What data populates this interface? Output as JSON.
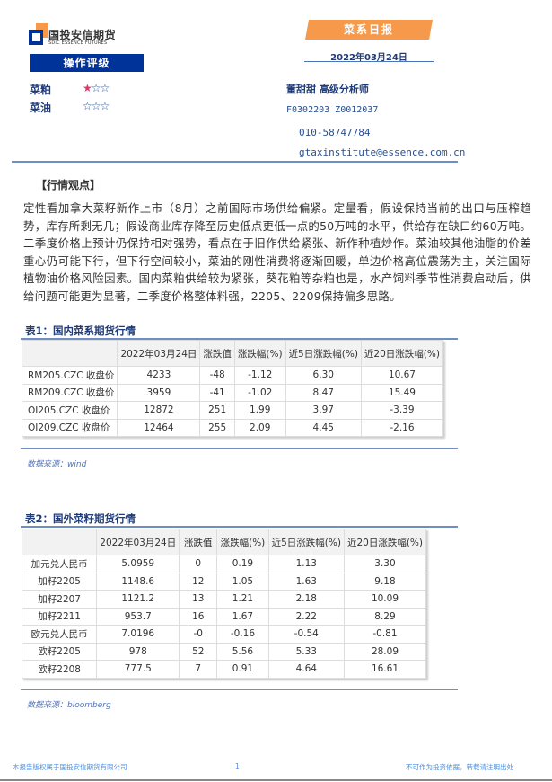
{
  "header": {
    "company_cn": "国投安信期货",
    "company_en": "SDIC ESSENCE FUTURES",
    "report_type": "菜系日报",
    "date": "2022年03月24日"
  },
  "rating": {
    "title": "操作评级",
    "items": [
      {
        "name": "菜粕",
        "stars": 1,
        "max": 3
      },
      {
        "name": "菜油",
        "stars": 0,
        "max": 3
      }
    ]
  },
  "analyst": {
    "name_title": "董甜甜 高级分析师",
    "license": "F0302203 Z0012037",
    "phone": "010-58747784",
    "email": "gtaxinstitute@essence.com.cn"
  },
  "colors": {
    "brand_blue": "#003399",
    "orange": "#f7994a",
    "star_on": "#e8336a"
  },
  "view": {
    "title": "【行情观点】",
    "body": "定性看加拿大菜籽新作上市（8月）之前国际市场供给偏紧。定量看，假设保持当前的出口与压榨趋势，库存所剩无几；假设商业库存降至历史低点更低一点的50万吨的水平，供给存在缺口约60万吨。二季度价格上预计仍保持相对强势，看点在于旧作供给紧张、新作种植炒作。菜油较其他油脂的价差重心仍可能下行，但下行空间较小，菜油的刚性消费将逐渐回暖，单边价格高位震荡为主，关注国际植物油价格风险因素。国内菜粕供给较为紧张，葵花粕等杂粕也是，水产饲料季节性消费启动后，供给问题可能更为显著，二季度价格整体料强，2205、2209保持偏多思路。"
  },
  "table1": {
    "title": "表1：国内菜系期货行情",
    "headers": [
      "",
      "2022年03月24日",
      "涨跌值",
      "涨跌幅(%)",
      "近5日涨跌幅(%)",
      "近20日涨跌幅(%)"
    ],
    "rows": [
      [
        "RM205.CZC 收盘价",
        "4233",
        "-48",
        "-1.12",
        "6.30",
        "10.67"
      ],
      [
        "RM209.CZC 收盘价",
        "3959",
        "-41",
        "-1.02",
        "8.47",
        "15.49"
      ],
      [
        "OI205.CZC 收盘价",
        "12872",
        "251",
        "1.99",
        "3.97",
        "-3.39"
      ],
      [
        "OI209.CZC 收盘价",
        "12464",
        "255",
        "2.09",
        "4.45",
        "-2.16"
      ]
    ],
    "source": "数据来源：wind"
  },
  "table2": {
    "title": "表2：国外菜籽期货行情",
    "headers": [
      "",
      "2022年03月24日",
      "涨跌值",
      "涨跌幅(%)",
      "近5日涨跌幅(%)",
      "近20日涨跌幅(%)"
    ],
    "rows": [
      [
        "加元兑人民币",
        "5.0959",
        "0",
        "0.19",
        "1.13",
        "3.30"
      ],
      [
        "加籽2205",
        "1148.6",
        "12",
        "1.05",
        "1.63",
        "9.18"
      ],
      [
        "加籽2207",
        "1121.2",
        "13",
        "1.21",
        "2.18",
        "10.09"
      ],
      [
        "加籽2211",
        "953.7",
        "16",
        "1.67",
        "2.22",
        "8.29"
      ],
      [
        "欧元兑人民币",
        "7.0196",
        "-0",
        "-0.16",
        "-0.54",
        "-0.81"
      ],
      [
        "欧籽2205",
        "978",
        "52",
        "5.56",
        "5.33",
        "28.09"
      ],
      [
        "欧籽2208",
        "777.5",
        "7",
        "0.91",
        "4.64",
        "16.61"
      ]
    ],
    "source": "数据来源：bloomberg"
  },
  "footer": {
    "left": "本报告版权属于国投安信期货有限公司",
    "page": "1",
    "right": "不可作为投资依据，转载请注明出处"
  }
}
